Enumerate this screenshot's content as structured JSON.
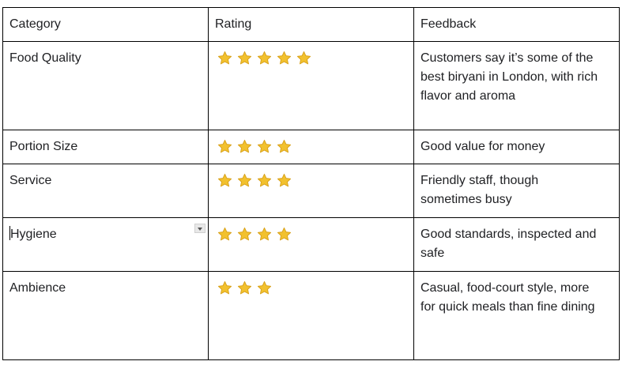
{
  "table": {
    "headers": [
      "Category",
      "Rating",
      "Feedback"
    ],
    "rows": [
      {
        "category": "Food Quality",
        "rating": 5,
        "feedback": "Customers say it’s some of the best biryani in London, with rich flavor and aroma"
      },
      {
        "category": "Portion Size",
        "rating": 4,
        "feedback": "Good value for money"
      },
      {
        "category": "Service",
        "rating": 4,
        "feedback": "Friendly staff, though sometimes busy"
      },
      {
        "category": "Hygiene",
        "rating": 4,
        "feedback": "Good standards, inspected and safe"
      },
      {
        "category": "Ambience",
        "rating": 3,
        "feedback": "Casual, food-court style, more for quick meals than fine dining"
      }
    ]
  },
  "colors": {
    "star": "#f2c12e",
    "star_edge": "#d9a21b"
  },
  "icons": {
    "rating": "star-icon",
    "cell_menu": "dropdown-arrow-icon"
  }
}
